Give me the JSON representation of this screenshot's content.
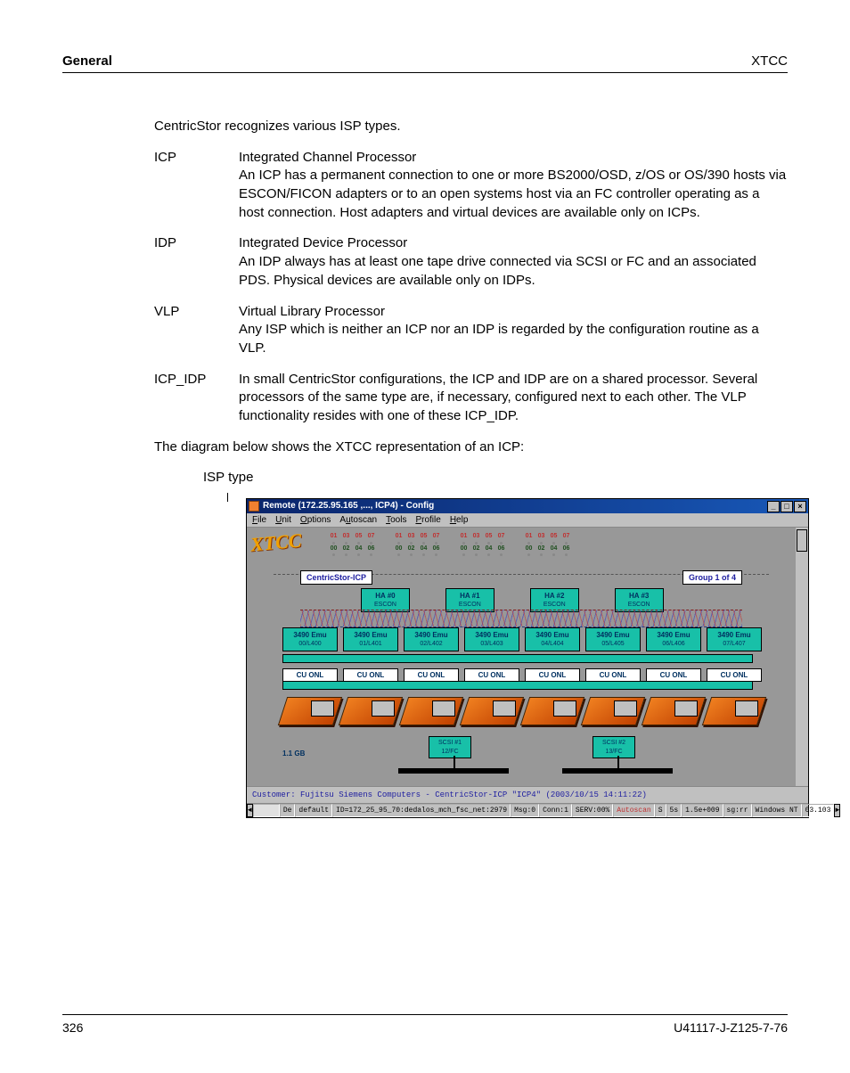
{
  "header": {
    "left": "General",
    "right": "XTCC"
  },
  "intro": "CentricStor recognizes various ISP types.",
  "defs": [
    {
      "term": "ICP",
      "desc": "Integrated Channel Processor\nAn ICP has a permanent connection to one or more BS2000/OSD, z/OS or OS/390 hosts via ESCON/FICON adapters or to an open systems host via an FC controller operating as a host connection. Host adapters and virtual devices are available only on ICPs."
    },
    {
      "term": "IDP",
      "desc": "Integrated Device Processor\nAn IDP always has at least one tape drive connected via SCSI or FC and an associated PDS. Physical devices are available only on IDPs."
    },
    {
      "term": "VLP",
      "desc": "Virtual Library Processor\nAny ISP which is neither an ICP nor an IDP is regarded by the configuration routine as a VLP."
    },
    {
      "term": "ICP_IDP",
      "desc": "In small CentricStor configurations, the ICP and IDP are on a shared processor. Several processors of the same type are, if necessary,  configured next to each other. The VLP functionality resides with one of these ICP_IDP."
    }
  ],
  "diag_intro": "The diagram below shows the XTCC representation of an ICP:",
  "isp_type_label": "ISP type",
  "screenshot": {
    "title": "Remote (172.25.95.165 ,..., ICP4) - Config",
    "menus": [
      "File",
      "Unit",
      "Options",
      "Autoscan",
      "Tools",
      "Profile",
      "Help"
    ],
    "logo": "XTCC",
    "ch_values": [
      "01",
      "03",
      "05",
      "07"
    ],
    "ch_values2": [
      "00",
      "02",
      "04",
      "06"
    ],
    "cs_label": "CentricStor-ICP",
    "grp_label": "Group 1 of 4",
    "ha": [
      {
        "t": "HA #0",
        "s": "ESCON"
      },
      {
        "t": "HA #1",
        "s": "ESCON"
      },
      {
        "t": "HA #2",
        "s": "ESCON"
      },
      {
        "t": "HA #3",
        "s": "ESCON"
      }
    ],
    "emu": [
      {
        "t": "3490 Emu",
        "s": "00/L400"
      },
      {
        "t": "3490 Emu",
        "s": "01/L401"
      },
      {
        "t": "3490 Emu",
        "s": "02/L402"
      },
      {
        "t": "3490 Emu",
        "s": "03/L403"
      },
      {
        "t": "3490 Emu",
        "s": "04/L404"
      },
      {
        "t": "3490 Emu",
        "s": "05/L405"
      },
      {
        "t": "3490 Emu",
        "s": "06/L406"
      },
      {
        "t": "3490 Emu",
        "s": "07/L407"
      }
    ],
    "cu_text": "CU  ONL",
    "scsi": [
      {
        "t": "SCSI #1",
        "s": "12/FC"
      },
      {
        "t": "SCSI #2",
        "s": "13/FC"
      }
    ],
    "gb": "1.1 GB",
    "customer": "Customer: Fujitsu Siemens Computers - CentricStor-ICP \"ICP4\" (2003/10/15 14:11:22)",
    "status": {
      "cells": [
        "De",
        "default",
        "ID=172_25_95_70:dedalos_mch_fsc_net:2979",
        "Msg:0",
        "Conn:1",
        "SERV:00%",
        "Autoscan",
        "S",
        "5s",
        "1.5e+009",
        "sg:rr",
        "Windows NT",
        "03.103"
      ]
    },
    "colors": {
      "titlebar_from": "#0a246a",
      "titlebar_to": "#1858b8",
      "canvas_bg": "#989898",
      "teal": "#18c0a8",
      "chrome": "#c0c0c0",
      "orange": "#f08020",
      "dark_orange": "#c04000"
    }
  },
  "footer": {
    "page": "326",
    "doc": "U41117-J-Z125-7-76"
  }
}
